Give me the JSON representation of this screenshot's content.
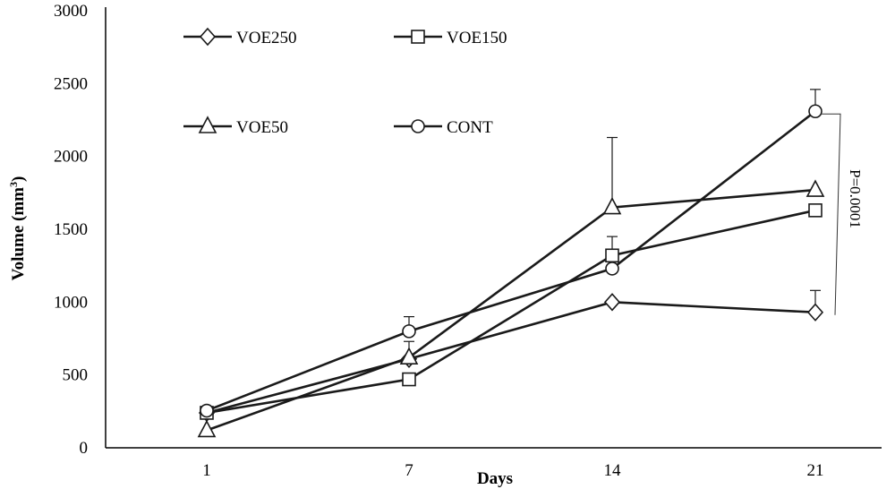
{
  "chart_data": {
    "type": "line",
    "categories": [
      "1",
      "7",
      "14",
      "21"
    ],
    "xlabel": "Days",
    "ylabel": "Volume (mm",
    "ylabel_sup": "3",
    "ylabel_close": ")",
    "ylim": [
      0,
      3000
    ],
    "yticks": [
      "0",
      "500",
      "1000",
      "1500",
      "2000",
      "2500",
      "3000"
    ],
    "grid": false,
    "legend_position": "top-left",
    "series": [
      {
        "name": "VOE250",
        "marker": "diamond",
        "values": [
          240,
          610,
          1000,
          930
        ],
        "error": [
          null,
          null,
          null,
          150
        ]
      },
      {
        "name": "VOE150",
        "marker": "square",
        "values": [
          240,
          470,
          1320,
          1630
        ],
        "error": [
          null,
          null,
          130,
          null
        ]
      },
      {
        "name": "VOE50",
        "marker": "triangle",
        "values": [
          120,
          620,
          1650,
          1770
        ],
        "error": [
          null,
          110,
          480,
          null
        ]
      },
      {
        "name": "CONT",
        "marker": "circle",
        "values": [
          255,
          800,
          1230,
          2310
        ],
        "error": [
          null,
          100,
          null,
          150
        ]
      }
    ],
    "annotation": "P=0.0001",
    "line_color": "#1a1a1a"
  }
}
